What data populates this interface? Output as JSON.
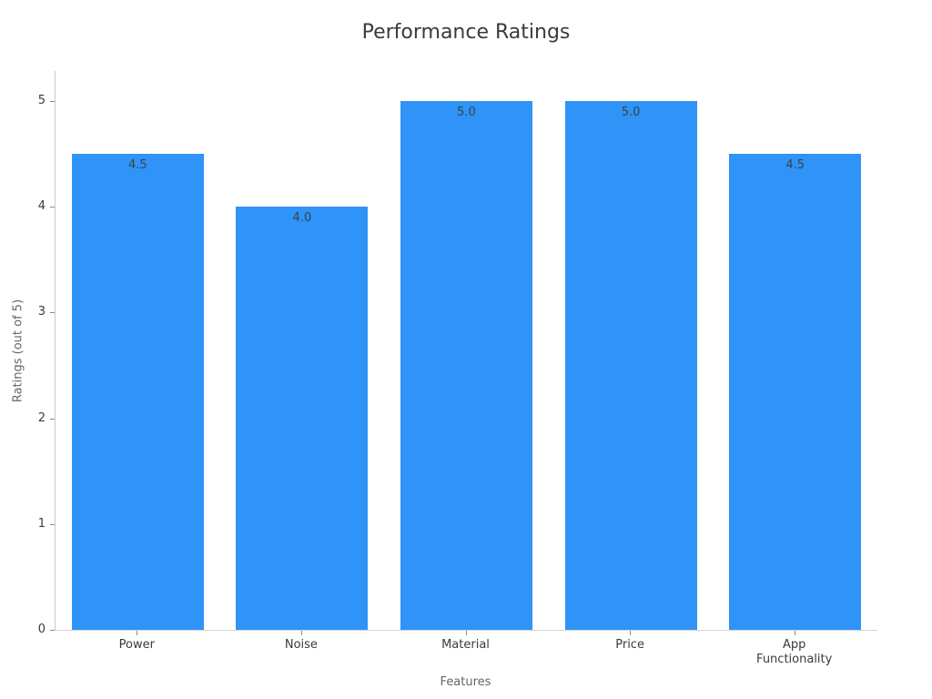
{
  "chart_data": {
    "type": "bar",
    "title": "Performance Ratings",
    "xlabel": "Features",
    "ylabel": "Ratings (out of 5)",
    "categories": [
      "Power",
      "Noise",
      "Material",
      "Price",
      "App\nFunctionality"
    ],
    "values": [
      4.5,
      4.0,
      5.0,
      5.0,
      4.5
    ],
    "value_labels": [
      "4.5",
      "4.0",
      "5.0",
      "5.0",
      "4.5"
    ],
    "yticks": [
      "0",
      "1",
      "2",
      "3",
      "4",
      "5"
    ],
    "ylim": [
      0,
      5.28
    ],
    "grid": false,
    "legend": "none",
    "colors": {
      "bar": "#2f93f7",
      "spine": "#c9c9c9",
      "tick_text": "#3b3b3b",
      "axis_label_text": "#666666",
      "title_text": "#3b3b3b",
      "background": "#ffffff"
    }
  }
}
